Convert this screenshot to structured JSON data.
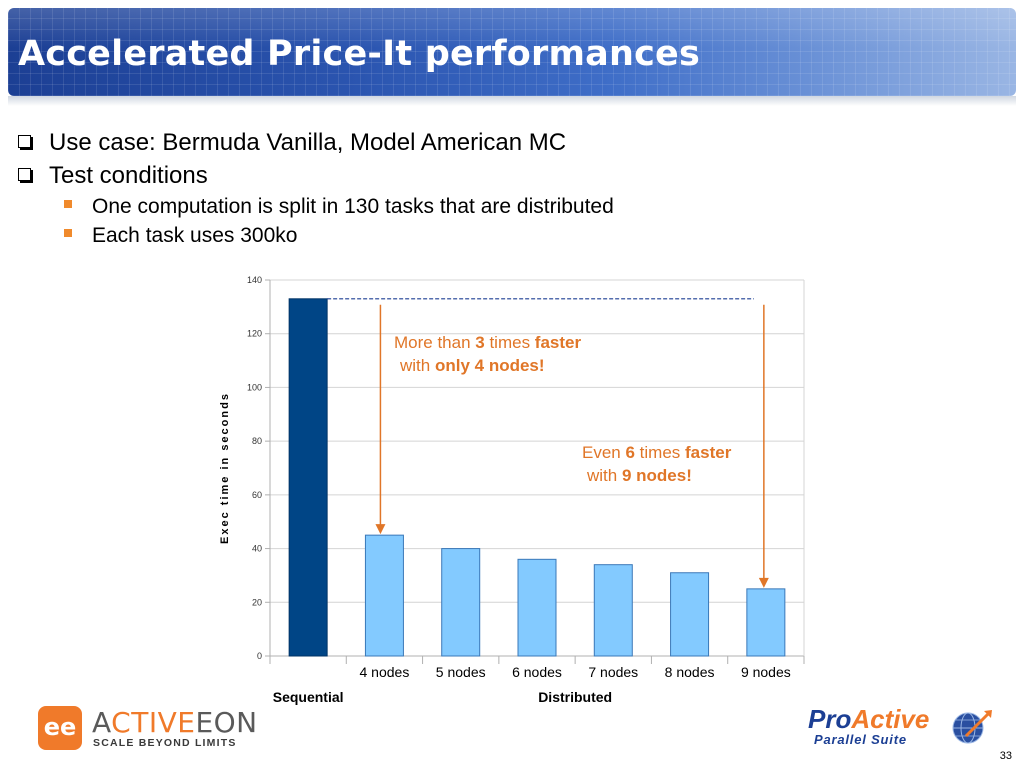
{
  "slide": {
    "title": "Accelerated Price-It performances",
    "bullets": [
      {
        "level": 1,
        "text": "Use case: Bermuda Vanilla, Model American MC"
      },
      {
        "level": 1,
        "text": "Test conditions"
      },
      {
        "level": 2,
        "text": "One computation is split in 130 tasks that are distributed"
      },
      {
        "level": 2,
        "text": "Each task uses 300ko"
      }
    ],
    "page_number": "33"
  },
  "chart_data": {
    "type": "bar",
    "title": "",
    "ylabel": "Exec time in seconds",
    "xlabel": "",
    "ylim": [
      0,
      140
    ],
    "yticks": [
      0,
      20,
      40,
      60,
      80,
      100,
      120,
      140
    ],
    "grid": true,
    "categories": [
      "",
      "4 nodes",
      "5 nodes",
      "6 nodes",
      "7 nodes",
      "8 nodes",
      "9 nodes"
    ],
    "values": [
      133,
      45,
      40,
      36,
      34,
      31,
      25
    ],
    "groups": [
      {
        "label": "Sequential",
        "categories": [
          0
        ]
      },
      {
        "label": "Distributed",
        "categories": [
          1,
          2,
          3,
          4,
          5,
          6
        ]
      }
    ],
    "colors": {
      "sequential": "#004586",
      "distributed": "#83caff",
      "reference_line": "#1c3f94",
      "arrow": "#e07628"
    },
    "reference_line_value": 133,
    "annotations": [
      {
        "line1_pre": "More than ",
        "line1_num": "3",
        "line1_mid": " times ",
        "line1_bold": "faster",
        "line2_pre": "with ",
        "line2_bold": "only 4 nodes!",
        "arrow_to_category": 1
      },
      {
        "line1_pre": "Even ",
        "line1_num": "6",
        "line1_mid": " times ",
        "line1_bold": "faster",
        "line2_pre": "with ",
        "line2_bold": "9 nodes!",
        "arrow_to_category": 6
      }
    ]
  },
  "logos": {
    "activeeon": {
      "badge": "ee",
      "name_a": "A",
      "name_accent": "CTIVE",
      "name_b": "EON",
      "tagline": "SCALE BEYOND LIMITS"
    },
    "proactive": {
      "name_a": "Pro",
      "name_accent": "Active",
      "subtitle": "Parallel Suite"
    }
  }
}
